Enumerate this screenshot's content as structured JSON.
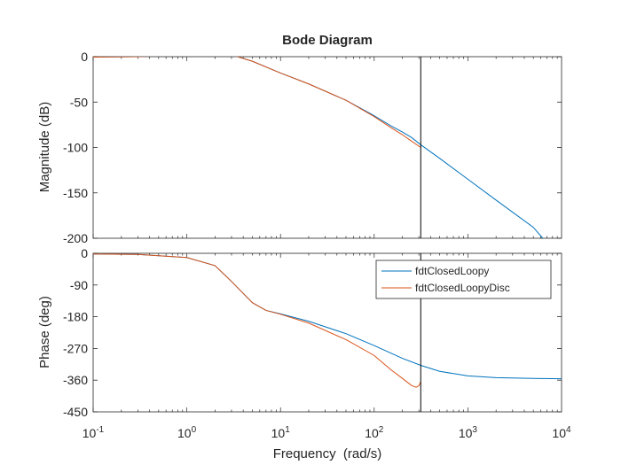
{
  "chart_data": {
    "type": "line",
    "title": "Bode Diagram",
    "xlabel": "Frequency  (rad/s)",
    "xscale": "log",
    "xlim": [
      0.1,
      10000
    ],
    "x_ticks": [
      {
        "value": 0.1,
        "base": "10",
        "exp": "-1"
      },
      {
        "value": 1,
        "base": "10",
        "exp": "0"
      },
      {
        "value": 10,
        "base": "10",
        "exp": "1"
      },
      {
        "value": 100,
        "base": "10",
        "exp": "2"
      },
      {
        "value": 1000,
        "base": "10",
        "exp": "3"
      },
      {
        "value": 10000,
        "base": "10",
        "exp": "4"
      }
    ],
    "nyquist_line_x": 314,
    "legend_location": "upper-right of phase axes",
    "colors": {
      "series_1": "#0072BD",
      "series_2": "#D95319",
      "marker_line": "#000000"
    },
    "series": [
      {
        "name": "fdtClosedLoopy"
      },
      {
        "name": "fdtClosedLoopyDisc"
      }
    ],
    "panels": [
      {
        "ylabel": "Magnitude (dB)",
        "ylim": [
          -200,
          0
        ],
        "yticks": [
          0,
          -50,
          -100,
          -150,
          -200
        ],
        "ytick_labels": [
          "0",
          "-50",
          "-100",
          "-150",
          "-200"
        ],
        "series": [
          {
            "name": "fdtClosedLoopy",
            "x": [
              0.1,
              0.3,
              1,
              1.5,
              2,
              2.5,
              3,
              5,
              10,
              20,
              50,
              100,
              150,
              200,
              250,
              314,
              500,
              1000,
              2000,
              5000,
              6300
            ],
            "y": [
              -0.5,
              0,
              1.5,
              3,
              3.5,
              3,
              2,
              -5,
              -18,
              -30,
              -48,
              -65,
              -76,
              -83,
              -89,
              -97,
              -112,
              -135,
              -158,
              -188,
              -200
            ]
          },
          {
            "name": "fdtClosedLoopyDisc",
            "x": [
              0.1,
              0.3,
              1,
              1.5,
              2,
              2.5,
              3,
              5,
              10,
              20,
              50,
              100,
              150,
              200,
              250,
              314
            ],
            "y": [
              -0.5,
              0,
              1.5,
              3,
              3.5,
              3,
              2,
              -5,
              -18,
              -30,
              -48,
              -66,
              -78,
              -86,
              -93,
              -100
            ]
          }
        ]
      },
      {
        "ylabel": "Phase (deg)",
        "ylim": [
          -450,
          0
        ],
        "yticks": [
          0,
          -90,
          -180,
          -270,
          -360,
          -450
        ],
        "ytick_labels": [
          "0",
          "-90",
          "-180",
          "-270",
          "-360",
          "-450"
        ],
        "series": [
          {
            "name": "fdtClosedLoopy",
            "x": [
              0.1,
              0.3,
              1,
              2,
              3,
              5,
              7,
              10,
              20,
              50,
              100,
              200,
              314,
              500,
              1000,
              2000,
              5000,
              10000
            ],
            "y": [
              -2,
              -3,
              -12,
              -35,
              -80,
              -140,
              -162,
              -172,
              -193,
              -228,
              -262,
              -298,
              -318,
              -335,
              -348,
              -353,
              -355,
              -356
            ]
          },
          {
            "name": "fdtClosedLoopyDisc",
            "x": [
              0.1,
              0.3,
              1,
              2,
              3,
              5,
              7,
              10,
              20,
              50,
              100,
              150,
              200,
              250,
              280,
              300,
              314
            ],
            "y": [
              -2,
              -3,
              -12,
              -35,
              -80,
              -140,
              -162,
              -173,
              -198,
              -245,
              -290,
              -330,
              -355,
              -375,
              -380,
              -376,
              -364
            ]
          }
        ]
      }
    ]
  }
}
